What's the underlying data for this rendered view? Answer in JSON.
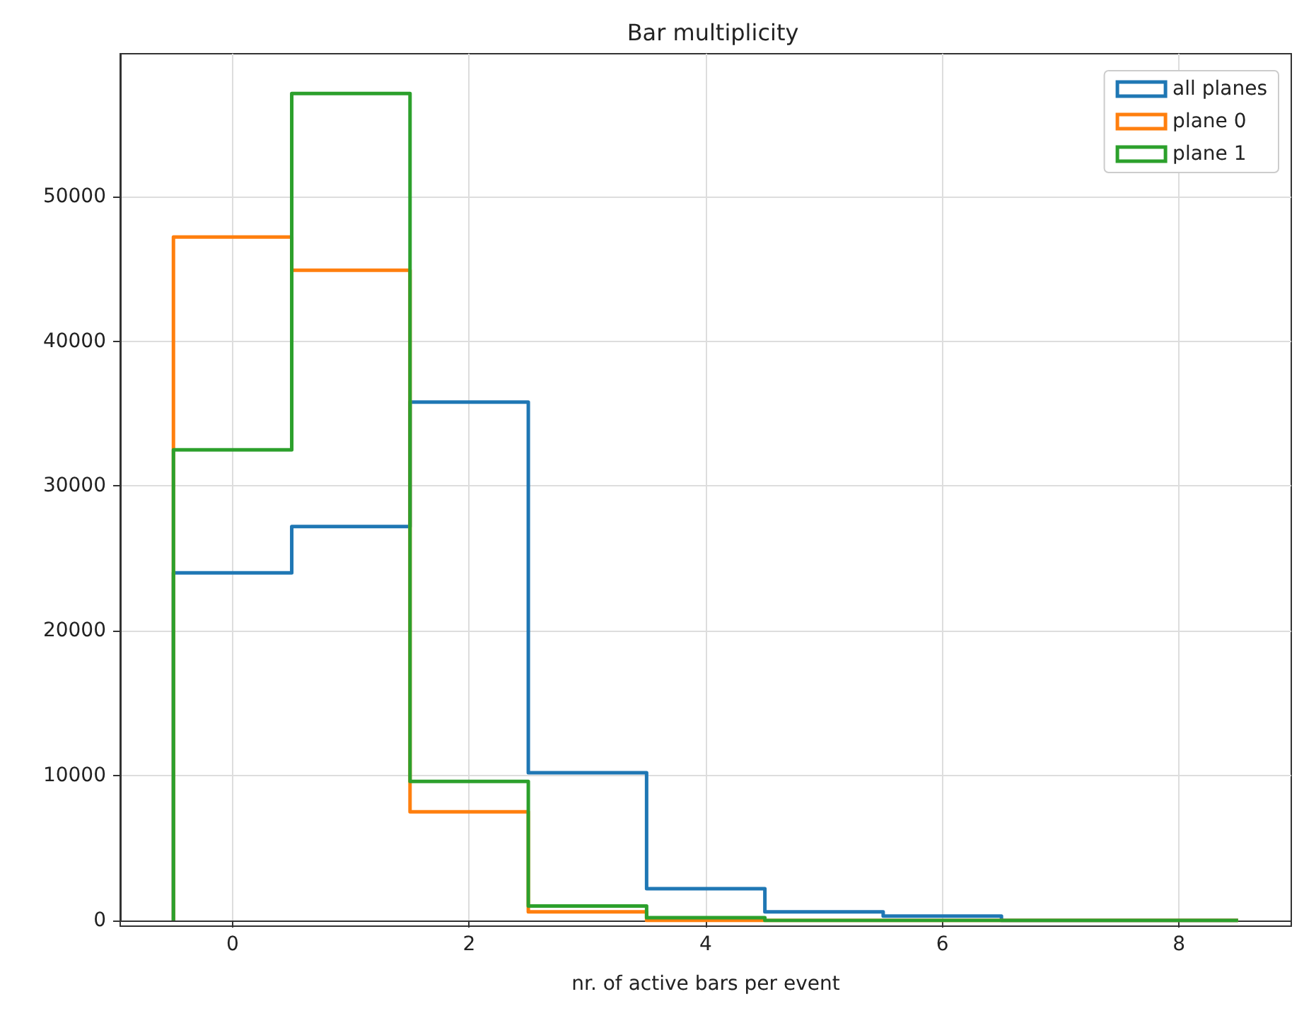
{
  "chart_data": {
    "type": "histogram",
    "title": "Bar multiplicity",
    "xlabel": "nr. of active bars per event",
    "bins": [
      -0.5,
      0.5,
      1.5,
      2.5,
      3.5,
      4.5,
      5.5,
      6.5,
      7.5,
      8.5
    ],
    "series": [
      {
        "name": "all planes",
        "color": "#1f77b4",
        "values": [
          24000,
          27200,
          35800,
          10200,
          2200,
          600,
          300,
          0,
          0
        ]
      },
      {
        "name": "plane 0",
        "color": "#ff7f0e",
        "values": [
          47200,
          44900,
          7500,
          600,
          0,
          0,
          0,
          0,
          0
        ]
      },
      {
        "name": "plane 1",
        "color": "#2ca02c",
        "values": [
          32500,
          57100,
          9600,
          1000,
          200,
          0,
          0,
          0,
          0
        ]
      }
    ],
    "xlim": [
      -0.95,
      8.95
    ],
    "ylim": [
      0,
      59850
    ],
    "xticks": [
      0,
      2,
      4,
      6,
      8
    ],
    "yticks": [
      0,
      10000,
      20000,
      30000,
      40000,
      50000
    ],
    "grid": true,
    "legend": "top right"
  }
}
